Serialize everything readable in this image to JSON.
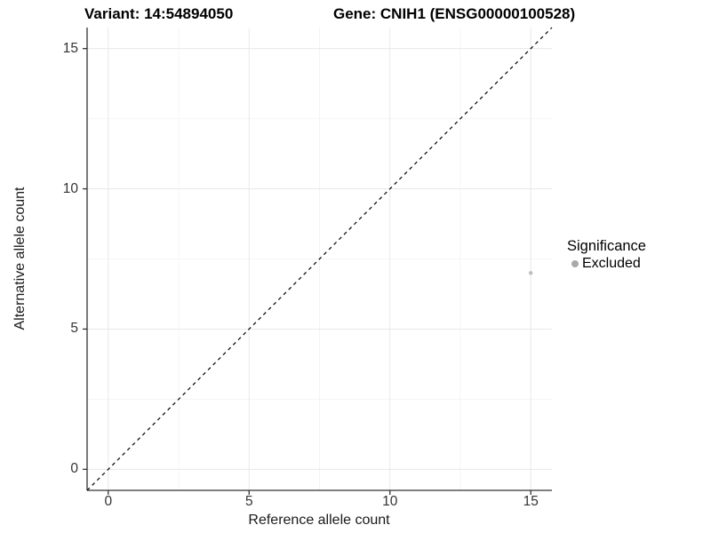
{
  "chart_data": {
    "type": "scatter",
    "titles": {
      "variant": "Variant: 14:54894050",
      "gene": "Gene: CNIH1 (ENSG00000100528)"
    },
    "xlabel": "Reference allele count",
    "ylabel": "Alternative allele count",
    "xlim": [
      -0.75,
      15.75
    ],
    "ylim": [
      -0.75,
      15.75
    ],
    "xticks": [
      0,
      5,
      10,
      15
    ],
    "yticks": [
      0,
      5,
      10,
      15
    ],
    "x_minor_ticks": [
      2.5,
      7.5,
      12.5
    ],
    "y_minor_ticks": [
      2.5,
      7.5,
      12.5
    ],
    "grid": "major+minor",
    "reference_line": {
      "type": "identity",
      "style": "dashed"
    },
    "points": [
      {
        "x": 15,
        "y": 7,
        "series": "Excluded"
      }
    ],
    "legend": {
      "title": "Significance",
      "position": "right",
      "entries": [
        {
          "label": "Excluded",
          "color": "#a9a9a9"
        }
      ]
    }
  },
  "colors": {
    "point": "#bdbdbd",
    "grid_major": "#e8e8e8",
    "grid_minor": "#f4f4f4",
    "axis_line": "#333333",
    "tick_text": "#333333",
    "reference_line": "#000000",
    "title_text": "#000000"
  }
}
